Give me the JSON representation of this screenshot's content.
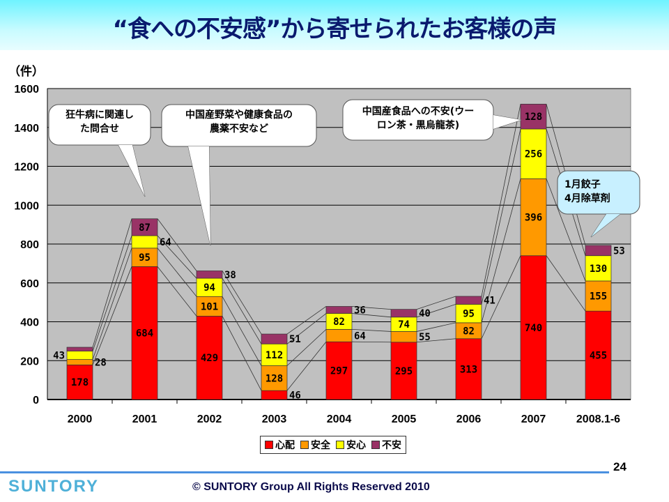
{
  "title": "“食への不安感”から寄せられたお客様の声",
  "chart_data": {
    "type": "bar",
    "stacked": true,
    "ylabel": "（件）",
    "ylim": [
      0,
      1600
    ],
    "yticks": [
      "0",
      "200",
      "400",
      "600",
      "800",
      "1000",
      "1200",
      "1400",
      "1600"
    ],
    "grid": true,
    "legend_position": "bottom",
    "categories": [
      "2000",
      "2001",
      "2002",
      "2003",
      "2004",
      "2005",
      "2006",
      "2007",
      "2008.1-6"
    ],
    "series": [
      {
        "name": "心配",
        "color": "#ff0000",
        "values": [
          178,
          684,
          429,
          46,
          297,
          295,
          313,
          740,
          455
        ]
      },
      {
        "name": "安全",
        "color": "#ff9900",
        "values": [
          28,
          95,
          101,
          128,
          64,
          55,
          82,
          396,
          155
        ]
      },
      {
        "name": "安心",
        "color": "#ffff00",
        "values": [
          43,
          64,
          94,
          112,
          82,
          74,
          95,
          256,
          130
        ]
      },
      {
        "name": "不安",
        "color": "#993366",
        "values": [
          20,
          87,
          38,
          51,
          36,
          40,
          41,
          128,
          53
        ]
      }
    ],
    "hidden_labels": [
      [
        3,
        0
      ]
    ],
    "annotations": [
      {
        "text": "狂牛病に関連した問合せ",
        "lines": [
          "狂牛病に関連し",
          "た問合せ"
        ]
      },
      {
        "text": "中国産野菜や健康食品の農薬不安など",
        "lines": [
          "中国産野菜や健康食品の",
          "農薬不安など"
        ]
      },
      {
        "text": "中国産食品への不安(ウーロン茶・黒烏龍茶)",
        "lines": [
          "中国産食品への不安(ウー",
          "ロン茶・黒烏龍茶)"
        ]
      },
      {
        "text": "1月餃子 4月除草剤",
        "lines": [
          "1月餃子",
          "4月除草剤"
        ]
      }
    ]
  },
  "footer": {
    "page": "24",
    "logo": "SUNTORY",
    "copyright": "© SUNTORY Group  All Rights Reserved 2010"
  }
}
